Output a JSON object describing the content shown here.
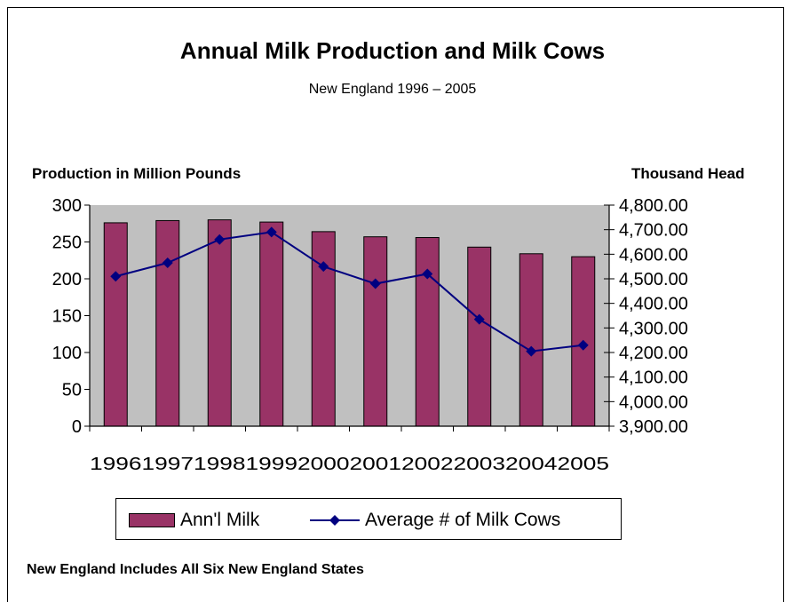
{
  "title": "Annual Milk Production and Milk Cows",
  "subtitle": "New England 1996 – 2005",
  "left_axis_label": "Production in Million Pounds",
  "right_axis_label": "Thousand Head",
  "footnote": "New England Includes All Six New England States",
  "colors": {
    "bar": "#993366",
    "line": "#000080",
    "plot_background": "#c0c0c0"
  },
  "chart_data": {
    "type": "bar",
    "title": "Annual Milk Production and Milk Cows",
    "subtitle": "New England 1996 – 2005",
    "categories": [
      "1996",
      "1997",
      "1998",
      "1999",
      "2000",
      "2001",
      "2002",
      "2003",
      "2004",
      "2005"
    ],
    "series": [
      {
        "name": "Ann'l Milk",
        "type": "bar",
        "axis": "left",
        "values": [
          276,
          279,
          280,
          277,
          264,
          257,
          256,
          243,
          234,
          230
        ]
      },
      {
        "name": "Average # of Milk Cows",
        "type": "line",
        "axis": "right",
        "marker": "diamond",
        "values": [
          4510,
          4565,
          4660,
          4690,
          4550,
          4480,
          4520,
          4335,
          4205,
          4230
        ]
      }
    ],
    "ylabel": "Production in Million Pounds",
    "ylim": [
      0,
      300
    ],
    "yticks": [
      "0",
      "50",
      "100",
      "150",
      "200",
      "250",
      "300"
    ],
    "y2label": "Thousand Head",
    "y2lim": [
      3900,
      4800
    ],
    "y2ticks": [
      "3,900.00",
      "4,000.00",
      "4,100.00",
      "4,200.00",
      "4,300.00",
      "4,400.00",
      "4,500.00",
      "4,600.00",
      "4,700.00",
      "4,800.00"
    ],
    "grid": false,
    "legend": "bottom"
  }
}
